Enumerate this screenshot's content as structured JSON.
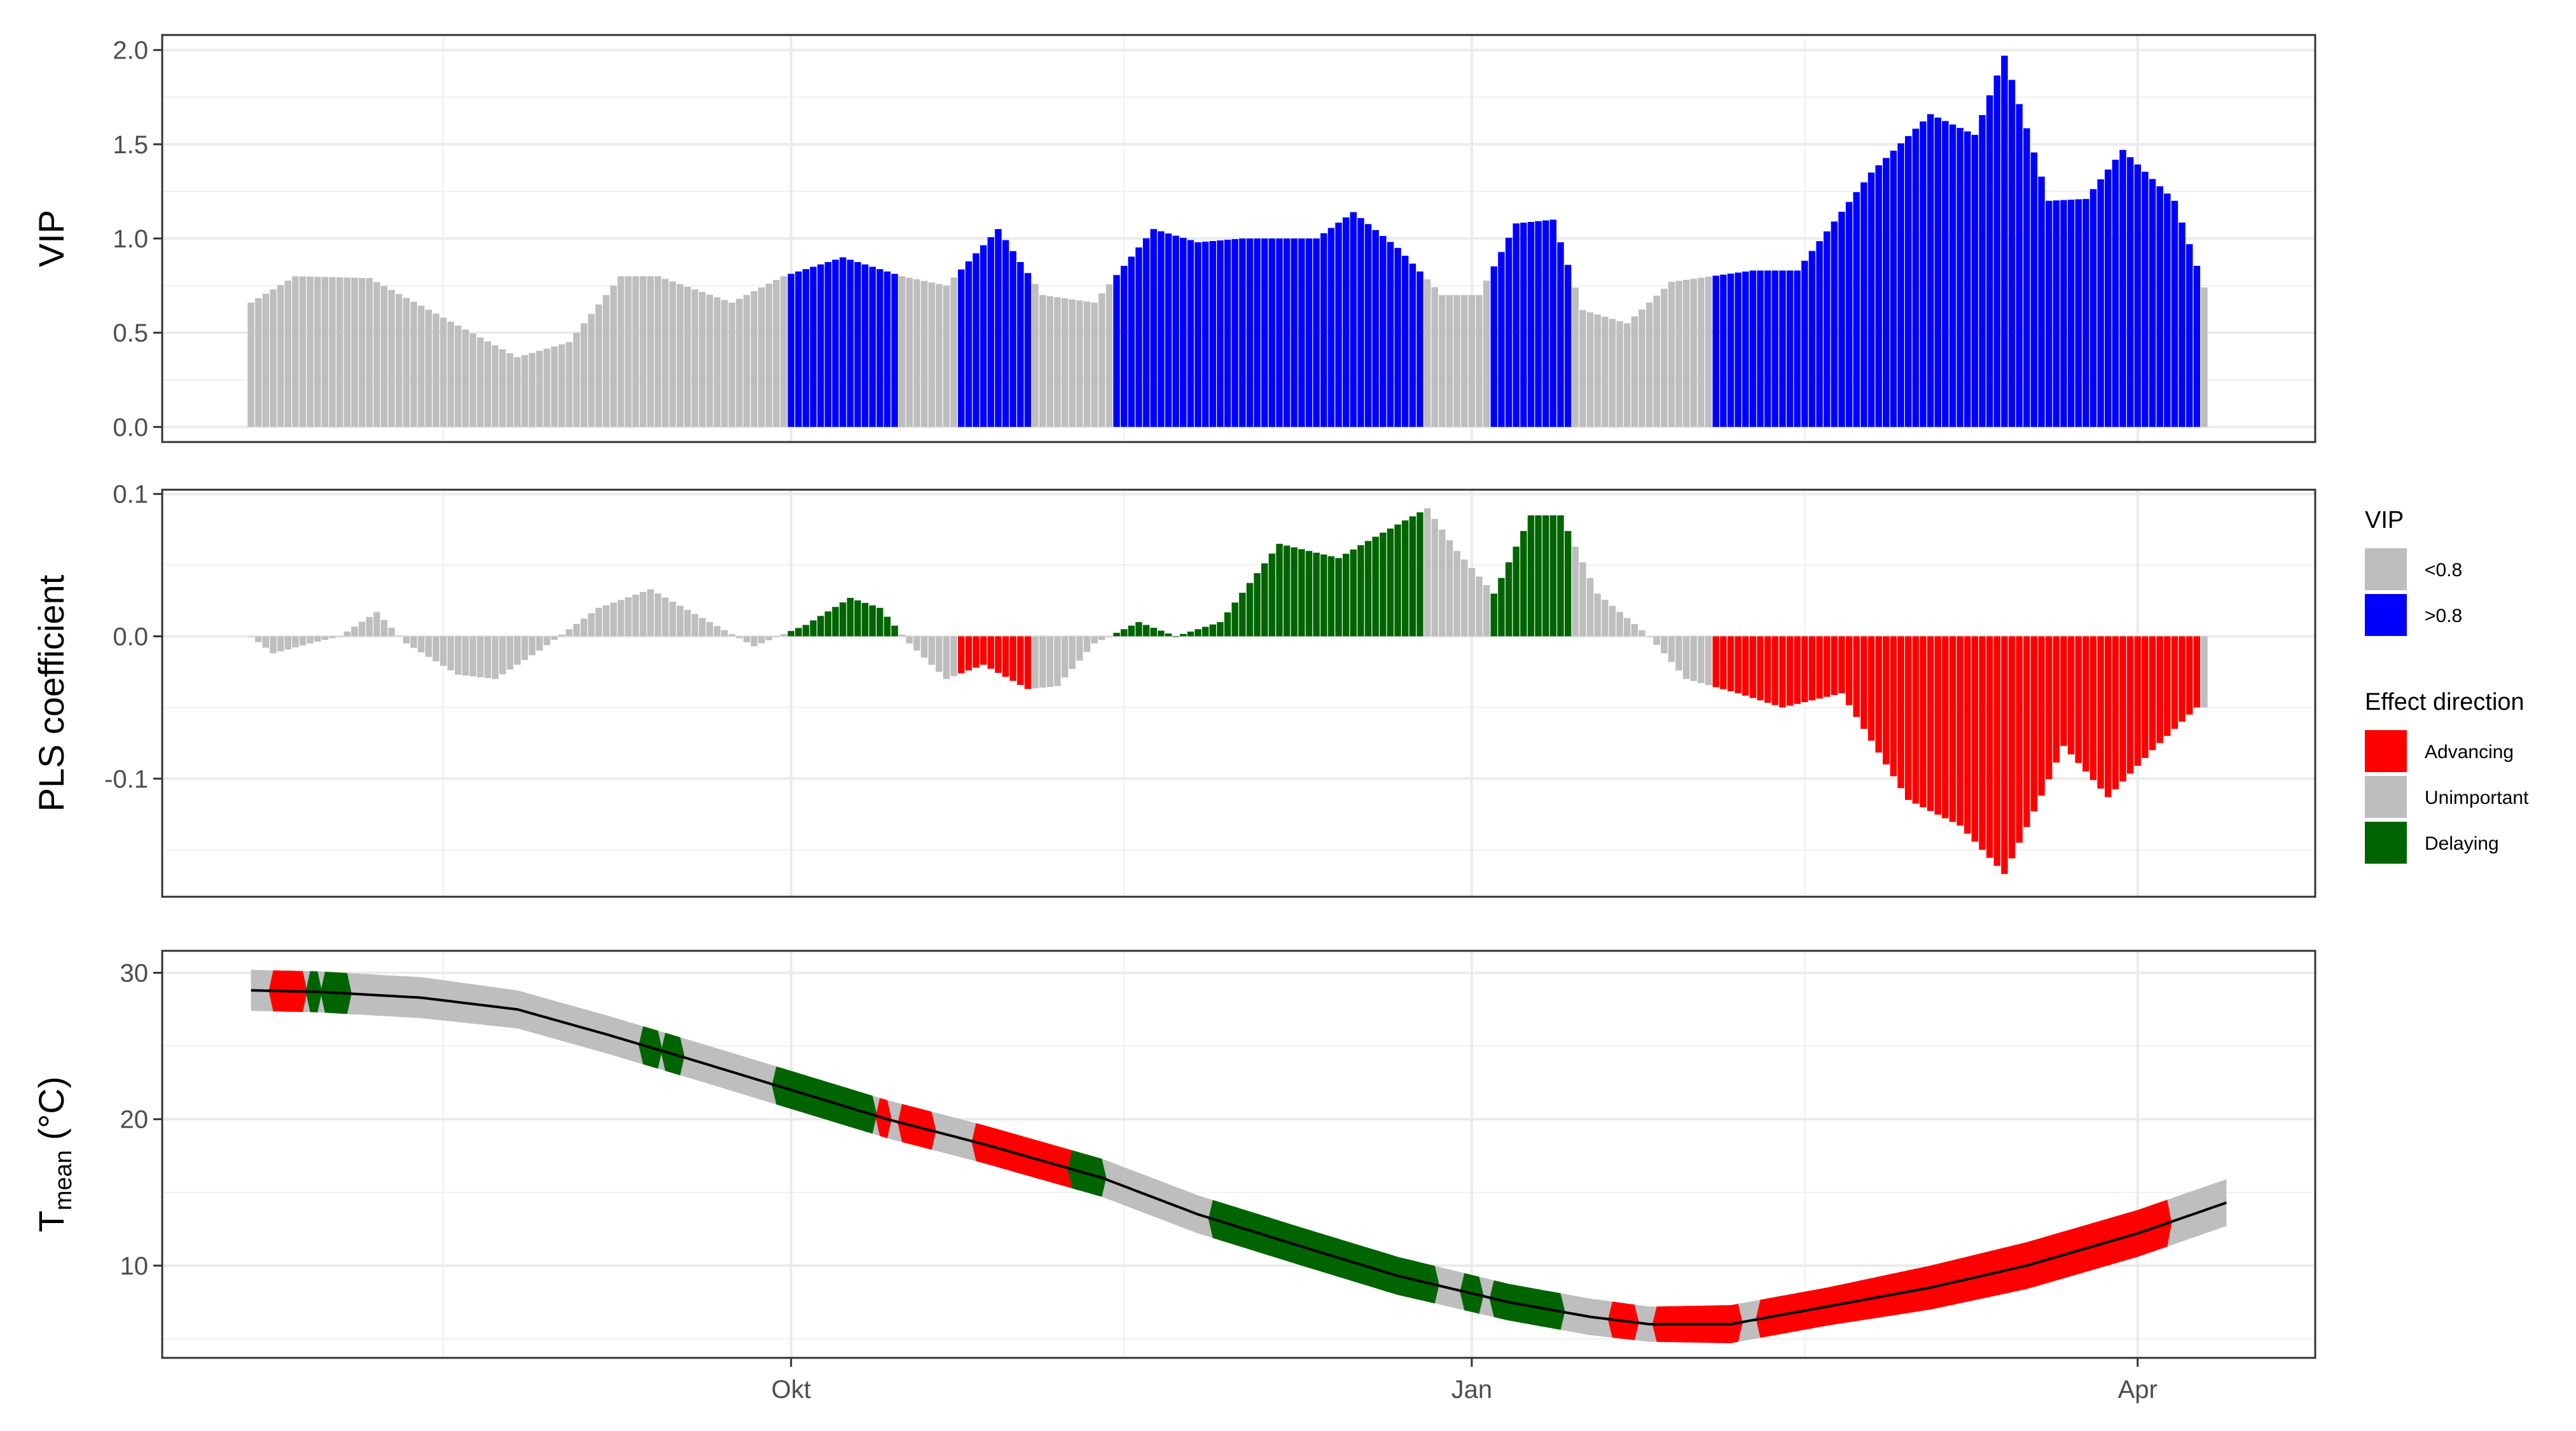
{
  "chart_data": {
    "type": "bar",
    "x_axis": {
      "type": "date",
      "ticks": [
        {
          "label": "Okt",
          "value": "2000-10-01"
        },
        {
          "label": "Jan",
          "value": "2001-01-01"
        },
        {
          "label": "Apr",
          "value": "2001-04-01"
        }
      ],
      "range": [
        "2000-07-08",
        "2001-04-25"
      ],
      "minor_grid": [
        "2000-08-15",
        "2000-11-15",
        "2001-02-15"
      ]
    },
    "grid": true,
    "colors": {
      "vip_low": "#BEBEBE",
      "vip_high": "#0000FF",
      "advancing": "#FF0000",
      "unimportant": "#BEBEBE",
      "delaying": "#006400",
      "temp_line": "#000000"
    },
    "panels": [
      {
        "id": "vip",
        "type": "bar",
        "ylabel": "VIP",
        "ylim": [
          -0.08,
          2.08
        ],
        "yticks": [
          0.0,
          0.5,
          1.0,
          1.5,
          2.0
        ],
        "ytick_labels": [
          "0.0",
          "0.5",
          "1.0",
          "1.5",
          "2.0"
        ],
        "series_keyframes": {
          "x": [
            "2000-07-20",
            "2000-07-26",
            "2000-08-05",
            "2000-08-25",
            "2000-09-01",
            "2000-09-08",
            "2000-09-13",
            "2000-09-23",
            "2000-09-30",
            "2000-10-08",
            "2000-10-16",
            "2000-10-22",
            "2000-10-29",
            "2000-11-04",
            "2000-11-11",
            "2000-11-19",
            "2000-11-25",
            "2000-12-01",
            "2000-12-11",
            "2000-12-16",
            "2000-12-22",
            "2000-12-28",
            "2001-01-02",
            "2001-01-07",
            "2001-01-12",
            "2001-01-16",
            "2001-01-22",
            "2001-01-28",
            "2001-02-08",
            "2001-02-14",
            "2001-02-24",
            "2001-03-04",
            "2001-03-10",
            "2001-03-14",
            "2001-03-20",
            "2001-03-25",
            "2001-03-30",
            "2001-04-06",
            "2001-04-10"
          ],
          "values": [
            0.66,
            0.8,
            0.79,
            0.37,
            0.45,
            0.8,
            0.8,
            0.66,
            0.8,
            0.9,
            0.8,
            0.75,
            1.05,
            0.7,
            0.66,
            1.05,
            0.98,
            1.0,
            1.0,
            1.14,
            0.95,
            0.7,
            0.7,
            1.08,
            1.1,
            0.62,
            0.55,
            0.77,
            0.83,
            0.83,
            1.35,
            1.66,
            1.55,
            1.97,
            1.2,
            1.21,
            1.47,
            1.2,
            0.74
          ]
        }
      },
      {
        "id": "pls",
        "type": "bar",
        "ylabel": "PLS coefficient",
        "ylim": [
          -0.183,
          0.103
        ],
        "yticks": [
          -0.1,
          0.0,
          0.1
        ],
        "ytick_labels": [
          "-0.1",
          "0.0",
          "0.1"
        ],
        "series_keyframes": {
          "x": [
            "2000-07-20",
            "2000-07-23",
            "2000-07-28",
            "2000-08-01",
            "2000-08-06",
            "2000-08-10",
            "2000-08-17",
            "2000-08-22",
            "2000-08-28",
            "2000-09-05",
            "2000-09-12",
            "2000-09-20",
            "2000-09-26",
            "2000-10-03",
            "2000-10-09",
            "2000-10-13",
            "2000-10-17",
            "2000-10-22",
            "2000-10-27",
            "2000-11-02",
            "2000-11-06",
            "2000-11-11",
            "2000-11-17",
            "2000-11-22",
            "2000-11-28",
            "2000-12-06",
            "2000-12-14",
            "2000-12-19",
            "2000-12-26",
            "2000-12-30",
            "2001-01-04",
            "2001-01-09",
            "2001-01-13",
            "2001-01-18",
            "2001-01-25",
            "2001-01-30",
            "2001-02-06",
            "2001-02-12",
            "2001-02-20",
            "2001-03-01",
            "2001-03-08",
            "2001-03-14",
            "2001-03-19",
            "2001-03-22",
            "2001-03-28",
            "2001-04-03",
            "2001-04-09"
          ],
          "values": [
            0.0,
            -0.012,
            -0.005,
            0.0,
            0.017,
            -0.005,
            -0.027,
            -0.03,
            -0.01,
            0.02,
            0.033,
            0.01,
            -0.007,
            0.008,
            0.027,
            0.02,
            -0.005,
            -0.03,
            -0.02,
            -0.037,
            -0.035,
            -0.005,
            0.01,
            0.0,
            0.01,
            0.065,
            0.055,
            0.07,
            0.09,
            0.06,
            0.03,
            0.085,
            0.085,
            0.03,
            0.0,
            -0.03,
            -0.04,
            -0.05,
            -0.04,
            -0.115,
            -0.133,
            -0.167,
            -0.112,
            -0.077,
            -0.113,
            -0.08,
            -0.05
          ]
        }
      },
      {
        "id": "temp",
        "type": "area",
        "ylabel": "T",
        "ylabel_sub": "mean",
        "ylabel_unit": " (°C)",
        "ylim": [
          3.7,
          31.5
        ],
        "yticks": [
          10,
          20,
          30
        ],
        "ytick_labels": [
          "10",
          "20",
          "30"
        ],
        "series_keyframes": {
          "x": [
            "2000-07-20",
            "2000-07-29",
            "2000-08-12",
            "2000-08-25",
            "2000-09-06",
            "2000-09-18",
            "2000-10-01",
            "2000-10-14",
            "2000-10-27",
            "2000-11-12",
            "2000-11-25",
            "2000-12-09",
            "2000-12-22",
            "2001-01-06",
            "2001-01-17",
            "2001-01-25",
            "2001-02-05",
            "2001-02-18",
            "2001-03-04",
            "2001-03-17",
            "2001-04-01",
            "2001-04-13"
          ],
          "mean": [
            28.8,
            28.7,
            28.3,
            27.5,
            25.8,
            24.0,
            22.0,
            20.0,
            18.3,
            16.0,
            13.5,
            11.3,
            9.3,
            7.5,
            6.5,
            6.0,
            6.0,
            7.2,
            8.5,
            10.0,
            12.2,
            14.3
          ],
          "band_halfwidth": [
            1.4,
            1.4,
            1.4,
            1.3,
            1.3,
            1.3,
            1.3,
            1.3,
            1.3,
            1.3,
            1.3,
            1.3,
            1.3,
            1.25,
            1.25,
            1.2,
            1.3,
            1.3,
            1.5,
            1.6,
            1.6,
            1.6
          ]
        },
        "effect_segments": [
          {
            "effect": "advancing",
            "x_start": "2000-07-23",
            "x_end": "2000-07-27"
          },
          {
            "effect": "delaying",
            "x_start": "2000-07-28",
            "x_end": "2000-07-29"
          },
          {
            "effect": "delaying",
            "x_start": "2000-07-30",
            "x_end": "2000-08-02"
          },
          {
            "effect": "delaying",
            "x_start": "2000-09-11",
            "x_end": "2000-09-13"
          },
          {
            "effect": "delaying",
            "x_start": "2000-09-14",
            "x_end": "2000-09-16"
          },
          {
            "effect": "delaying",
            "x_start": "2000-09-29",
            "x_end": "2000-10-12"
          },
          {
            "effect": "advancing",
            "x_start": "2000-10-13",
            "x_end": "2000-10-14"
          },
          {
            "effect": "advancing",
            "x_start": "2000-10-16",
            "x_end": "2000-10-20"
          },
          {
            "effect": "advancing",
            "x_start": "2000-10-26",
            "x_end": "2000-11-09"
          },
          {
            "effect": "delaying",
            "x_start": "2000-11-08",
            "x_end": "2000-11-12"
          },
          {
            "effect": "delaying",
            "x_start": "2000-11-27",
            "x_end": "2000-12-21"
          },
          {
            "effect": "delaying",
            "x_start": "2000-12-20",
            "x_end": "2000-12-27"
          },
          {
            "effect": "delaying",
            "x_start": "2000-12-31",
            "x_end": "2001-01-02"
          },
          {
            "effect": "delaying",
            "x_start": "2001-01-04",
            "x_end": "2001-01-13"
          },
          {
            "effect": "advancing",
            "x_start": "2001-01-20",
            "x_end": "2001-01-23"
          },
          {
            "effect": "advancing",
            "x_start": "2001-01-26",
            "x_end": "2001-02-02"
          },
          {
            "effect": "advancing",
            "x_start": "2001-02-02",
            "x_end": "2001-02-06"
          },
          {
            "effect": "advancing",
            "x_start": "2001-02-09",
            "x_end": "2001-04-05"
          }
        ]
      }
    ],
    "legend": {
      "placement": "right",
      "groups": [
        {
          "title": "VIP",
          "entries": [
            {
              "label": "<0.8",
              "color": "#BEBEBE"
            },
            {
              "label": ">0.8",
              "color": "#0000FF"
            }
          ]
        },
        {
          "title": "Effect direction",
          "entries": [
            {
              "label": "Advancing",
              "color": "#FF0000"
            },
            {
              "label": "Unimportant",
              "color": "#BEBEBE"
            },
            {
              "label": "Delaying",
              "color": "#006400"
            }
          ]
        }
      ]
    }
  }
}
